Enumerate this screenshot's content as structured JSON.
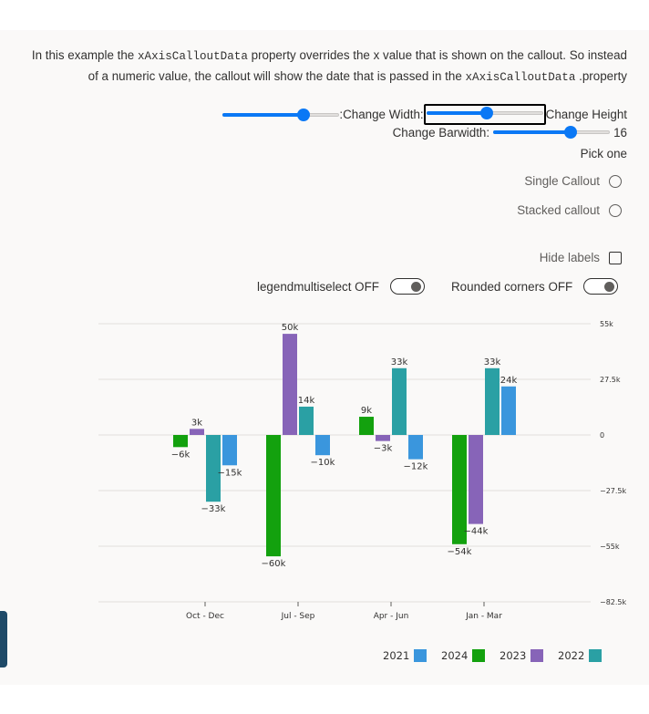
{
  "description": {
    "text1": "In this example the ",
    "code1": "xAxisCalloutData",
    "text2": " property overrides the x value that is shown on the callout. So instead of a numeric value, the callout will show the date that is passed in the ",
    "code2": "xAxisCalloutData",
    "text3": " .property"
  },
  "controls": {
    "change_width_label": ":Change Width:",
    "change_height_label": "Change Height",
    "change_barwidth_label": "Change Barwidth:",
    "barwidth_value": "16",
    "width_slider_level": 0.72,
    "height_slider_level": 0.52,
    "barwidth_slider_level": 0.68,
    "pick_one_label": "Pick one",
    "single_callout_label": "Single Callout",
    "stacked_callout_label": "Stacked callout",
    "hide_labels_label": "Hide labels",
    "legend_multiselect_label": "legendmultiselect OFF",
    "rounded_corners_label": "Rounded corners OFF"
  },
  "chart_data": {
    "type": "bar",
    "categories": [
      "Oct - Dec",
      "Jul - Sep",
      "Apr - Jun",
      "Jan - Mar"
    ],
    "series": [
      {
        "name": "2024",
        "color": "#13a10e",
        "values": [
          -6000,
          -60000,
          9000,
          -54000
        ],
        "labels": [
          "−6k",
          "−60k",
          "9k",
          "−54k"
        ]
      },
      {
        "name": "2023",
        "color": "#8764b8",
        "values": [
          3000,
          50000,
          -3000,
          -44000
        ],
        "labels": [
          "3k",
          "50k",
          "−3k",
          "−44k"
        ]
      },
      {
        "name": "2022",
        "color": "#2aa0a4",
        "values": [
          -33000,
          14000,
          33000,
          33000
        ],
        "labels": [
          "−33k",
          "14k",
          "33k",
          "33k"
        ]
      },
      {
        "name": "2021",
        "color": "#3a96dd",
        "values": [
          -15000,
          -10000,
          -12000,
          24000
        ],
        "labels": [
          "−15k",
          "−10k",
          "−12k",
          "24k"
        ]
      }
    ],
    "y_ticks": [
      55000,
      27500,
      0,
      -27500,
      -55000,
      -82500
    ],
    "y_tick_labels": [
      "55k",
      "27.5k",
      "0",
      "−27.5k",
      "−55k",
      "−82.5k"
    ],
    "ylim": [
      -82500,
      55000
    ],
    "legend": [
      "2021",
      "2024",
      "2023",
      "2022"
    ],
    "legend_placement": "bottom-right",
    "grid": true
  }
}
